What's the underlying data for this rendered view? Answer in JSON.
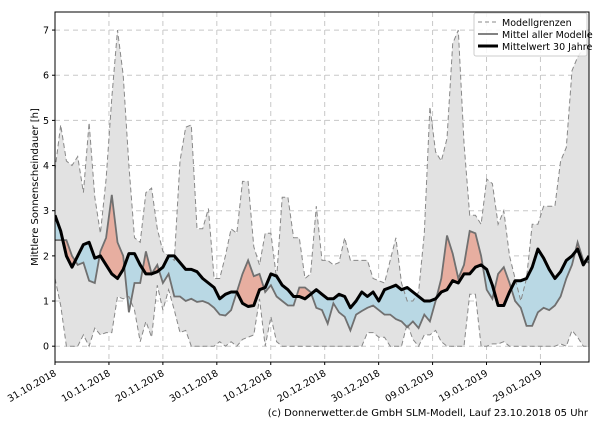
{
  "chart_data": {
    "type": "area",
    "ylabel": "Mittlere Sonnenscheindauer [h]",
    "xlabel": "",
    "ylim": [
      -0.35,
      7.4
    ],
    "xlim_days": [
      0,
      99
    ],
    "yticks": [
      "0",
      "1",
      "2",
      "3",
      "4",
      "5",
      "6",
      "7"
    ],
    "xticks": [
      {
        "day": 0,
        "label": "31.10.2018"
      },
      {
        "day": 10,
        "label": "10.11.2018"
      },
      {
        "day": 20,
        "label": "20.11.2018"
      },
      {
        "day": 30,
        "label": "30.11.2018"
      },
      {
        "day": 40,
        "label": "10.12.2018"
      },
      {
        "day": 50,
        "label": "20.12.2018"
      },
      {
        "day": 60,
        "label": "30.12.2018"
      },
      {
        "day": 70,
        "label": "09.01.2019"
      },
      {
        "day": 80,
        "label": "19.01.2019"
      },
      {
        "day": 90,
        "label": "29.01.2019"
      }
    ],
    "grid": true,
    "legend_position": "top-right",
    "legend": [
      "Modellgrenzen",
      "Mittel aller Modelle",
      "Mittelwert 30 Jahre"
    ],
    "series": {
      "upper": [
        3.9,
        4.9,
        4.1,
        4.0,
        4.2,
        3.4,
        4.95,
        3.3,
        2.5,
        3.7,
        5.5,
        7.0,
        6.0,
        4.0,
        2.4,
        2.3,
        3.4,
        3.5,
        2.6,
        2.1,
        2.0,
        1.9,
        4.1,
        4.85,
        4.9,
        2.6,
        2.6,
        3.05,
        1.5,
        1.5,
        2.0,
        2.6,
        2.5,
        3.65,
        3.65,
        2.2,
        1.8,
        2.5,
        2.5,
        1.5,
        3.3,
        3.3,
        2.4,
        2.4,
        1.5,
        1.6,
        3.1,
        1.9,
        1.9,
        1.8,
        1.85,
        2.4,
        1.9,
        1.9,
        1.9,
        1.9,
        1.5,
        1.45,
        1.4,
        1.9,
        2.4,
        1.4,
        1.0,
        1.0,
        1.2,
        2.5,
        5.3,
        4.3,
        4.1,
        4.6,
        6.7,
        7.0,
        4.5,
        2.9,
        2.9,
        2.7,
        3.7,
        3.6,
        2.7,
        3.0,
        2.0,
        1.5,
        1.0,
        1.5,
        2.7,
        2.7,
        3.1,
        3.1,
        3.1,
        4.1,
        4.4,
        6.1,
        6.4,
        6.6,
        6.6
      ],
      "lower": [
        1.5,
        0.9,
        0,
        0,
        0,
        0.25,
        0,
        0.4,
        0.25,
        0.3,
        0.3,
        1.1,
        1.05,
        1.1,
        0.8,
        0.1,
        0.55,
        0.2,
        1.35,
        0.8,
        1.25,
        0.8,
        0.3,
        0.35,
        0,
        0,
        0,
        0,
        0,
        0.1,
        0,
        0.1,
        0,
        0.15,
        0.2,
        0.25,
        1.05,
        0,
        0.65,
        0.1,
        0,
        0,
        0,
        0,
        0,
        0,
        0,
        0,
        0,
        0,
        0,
        0,
        0,
        0,
        0,
        0.3,
        0.3,
        0.2,
        0.2,
        0,
        0,
        0,
        0.5,
        0.15,
        0,
        0.25,
        0.25,
        0.35,
        0.1,
        0,
        0,
        0,
        0,
        1.15,
        1.15,
        0,
        0,
        0.05,
        0.05,
        0.1,
        0,
        0,
        0,
        0,
        0,
        0,
        0,
        0,
        0,
        0.05,
        0,
        0.35,
        0.2,
        0,
        0
      ],
      "mean_models": [
        2.35,
        2.35,
        2.35,
        2.0,
        1.8,
        1.85,
        1.45,
        1.4,
        2.1,
        2.4,
        3.35,
        2.3,
        2.0,
        0.75,
        1.4,
        1.4,
        2.1,
        1.6,
        1.8,
        1.4,
        1.6,
        1.1,
        1.1,
        1.0,
        1.05,
        0.98,
        1.0,
        0.95,
        0.85,
        0.7,
        0.68,
        0.8,
        1.2,
        1.6,
        1.9,
        1.55,
        1.6,
        1.2,
        1.35,
        1.1,
        1.0,
        0.9,
        0.9,
        1.3,
        1.3,
        1.2,
        0.85,
        0.8,
        0.5,
        0.95,
        0.75,
        0.65,
        0.35,
        0.7,
        0.78,
        0.85,
        0.9,
        0.8,
        0.7,
        0.7,
        0.6,
        0.55,
        0.42,
        0.55,
        0.4,
        0.7,
        0.55,
        1.0,
        1.5,
        2.45,
        2.05,
        1.5,
        1.8,
        2.55,
        2.5,
        2.0,
        1.25,
        1.05,
        1.6,
        1.75,
        1.4,
        1.0,
        0.85,
        0.45,
        0.45,
        0.75,
        0.85,
        0.8,
        0.9,
        1.1,
        1.5,
        1.8,
        2.3,
        1.9,
        1.85
      ],
      "mean_30y": [
        2.9,
        2.55,
        2.0,
        1.75,
        2.0,
        2.25,
        2.3,
        1.95,
        2.0,
        1.8,
        1.6,
        1.5,
        1.7,
        2.05,
        2.05,
        1.8,
        1.6,
        1.6,
        1.65,
        1.75,
        2.0,
        2.0,
        1.85,
        1.7,
        1.7,
        1.65,
        1.5,
        1.4,
        1.3,
        1.05,
        1.15,
        1.2,
        1.2,
        0.95,
        0.88,
        0.9,
        1.25,
        1.3,
        1.6,
        1.55,
        1.35,
        1.25,
        1.1,
        1.1,
        1.05,
        1.15,
        1.25,
        1.15,
        1.05,
        1.05,
        1.15,
        1.1,
        0.85,
        1.0,
        1.2,
        1.1,
        1.2,
        1.0,
        1.25,
        1.3,
        1.35,
        1.25,
        1.3,
        1.2,
        1.1,
        1.0,
        1.0,
        1.05,
        1.2,
        1.25,
        1.45,
        1.4,
        1.6,
        1.6,
        1.75,
        1.8,
        1.7,
        1.35,
        0.9,
        0.9,
        1.2,
        1.45,
        1.45,
        1.5,
        1.75,
        2.15,
        1.95,
        1.7,
        1.5,
        1.65,
        1.9,
        2.0,
        2.15,
        1.8,
        2.0
      ]
    },
    "colors": {
      "band": "#e2e2e2",
      "band_line": "#888888",
      "above": "#e9a190",
      "below": "#a8d4e6",
      "mean_models": "#707070",
      "mean_30y": "#000000"
    }
  },
  "credit": "(c) Donnerwetter.de GmbH SLM-Modell, Lauf 23.10.2018 05 Uhr"
}
